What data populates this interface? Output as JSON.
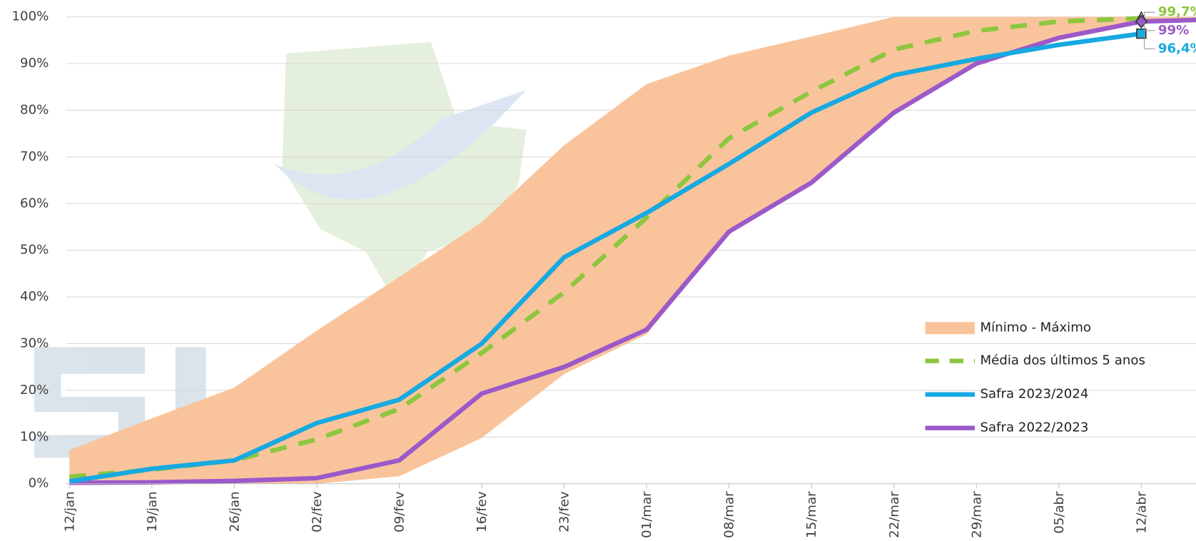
{
  "chart_data": {
    "type": "line",
    "categories": [
      "12/jan",
      "19/jan",
      "26/jan",
      "02/fev",
      "09/fev",
      "16/fev",
      "23/fev",
      "01/mar",
      "08/mar",
      "15/mar",
      "22/mar",
      "29/mar",
      "05/abr",
      "12/abr",
      null
    ],
    "band": {
      "name": "Mínimo - Máximo",
      "color": "#f9c49c",
      "min": [
        0,
        0,
        0,
        0,
        1.6,
        9.8,
        23.5,
        32,
        53.5,
        64,
        79.5,
        90,
        95,
        98.5,
        99.5
      ],
      "max": [
        7.2,
        14,
        20.6,
        32.8,
        44.3,
        56,
        72.5,
        85.6,
        91.7,
        95.8,
        100,
        100,
        100,
        100,
        100
      ]
    },
    "series": [
      {
        "name": "Média dos últimos 5 anos",
        "color": "#8dc63f",
        "line_style": "dashed",
        "marker": "triangle",
        "values": [
          1.5,
          3,
          5,
          9.5,
          16,
          28,
          41,
          57,
          74,
          84,
          93,
          97,
          99,
          99.7,
          null
        ],
        "value_labels": [
          null,
          null,
          null,
          null,
          null,
          null,
          null,
          null,
          null,
          null,
          null,
          null,
          null,
          "99,7%",
          null
        ]
      },
      {
        "name": "Safra 2023/2024",
        "color": "#17a9e1",
        "line_style": "solid",
        "marker": "square",
        "values": [
          0.5,
          3.2,
          5,
          13,
          18,
          30,
          48.5,
          58,
          68.5,
          79.5,
          87.5,
          91,
          94,
          96.4,
          null
        ],
        "value_labels": [
          null,
          null,
          null,
          null,
          null,
          null,
          null,
          null,
          null,
          null,
          null,
          null,
          null,
          "96,4%",
          null
        ]
      },
      {
        "name": "Safra 2022/2023",
        "color": "#9b59c9",
        "line_style": "solid",
        "marker": "diamond",
        "values": [
          0.2,
          0.3,
          0.6,
          1.2,
          5,
          19.3,
          25,
          33,
          54,
          64.5,
          79.5,
          90,
          95.5,
          99,
          99.5
        ],
        "value_labels": [
          null,
          null,
          null,
          null,
          null,
          null,
          null,
          null,
          null,
          null,
          null,
          null,
          null,
          "99%",
          null
        ]
      }
    ],
    "ylim": [
      0,
      100
    ],
    "yticks": [
      {
        "value": 0,
        "label": "0%"
      },
      {
        "value": 10,
        "label": "10%"
      },
      {
        "value": 20,
        "label": "20%"
      },
      {
        "value": 30,
        "label": "30%"
      },
      {
        "value": 40,
        "label": "40%"
      },
      {
        "value": 50,
        "label": "50%"
      },
      {
        "value": 60,
        "label": "60%"
      },
      {
        "value": 70,
        "label": "70%"
      },
      {
        "value": 80,
        "label": "80%"
      },
      {
        "value": 90,
        "label": "90%"
      },
      {
        "value": 100,
        "label": "100%"
      }
    ],
    "grid": true,
    "legend": "lower right"
  }
}
